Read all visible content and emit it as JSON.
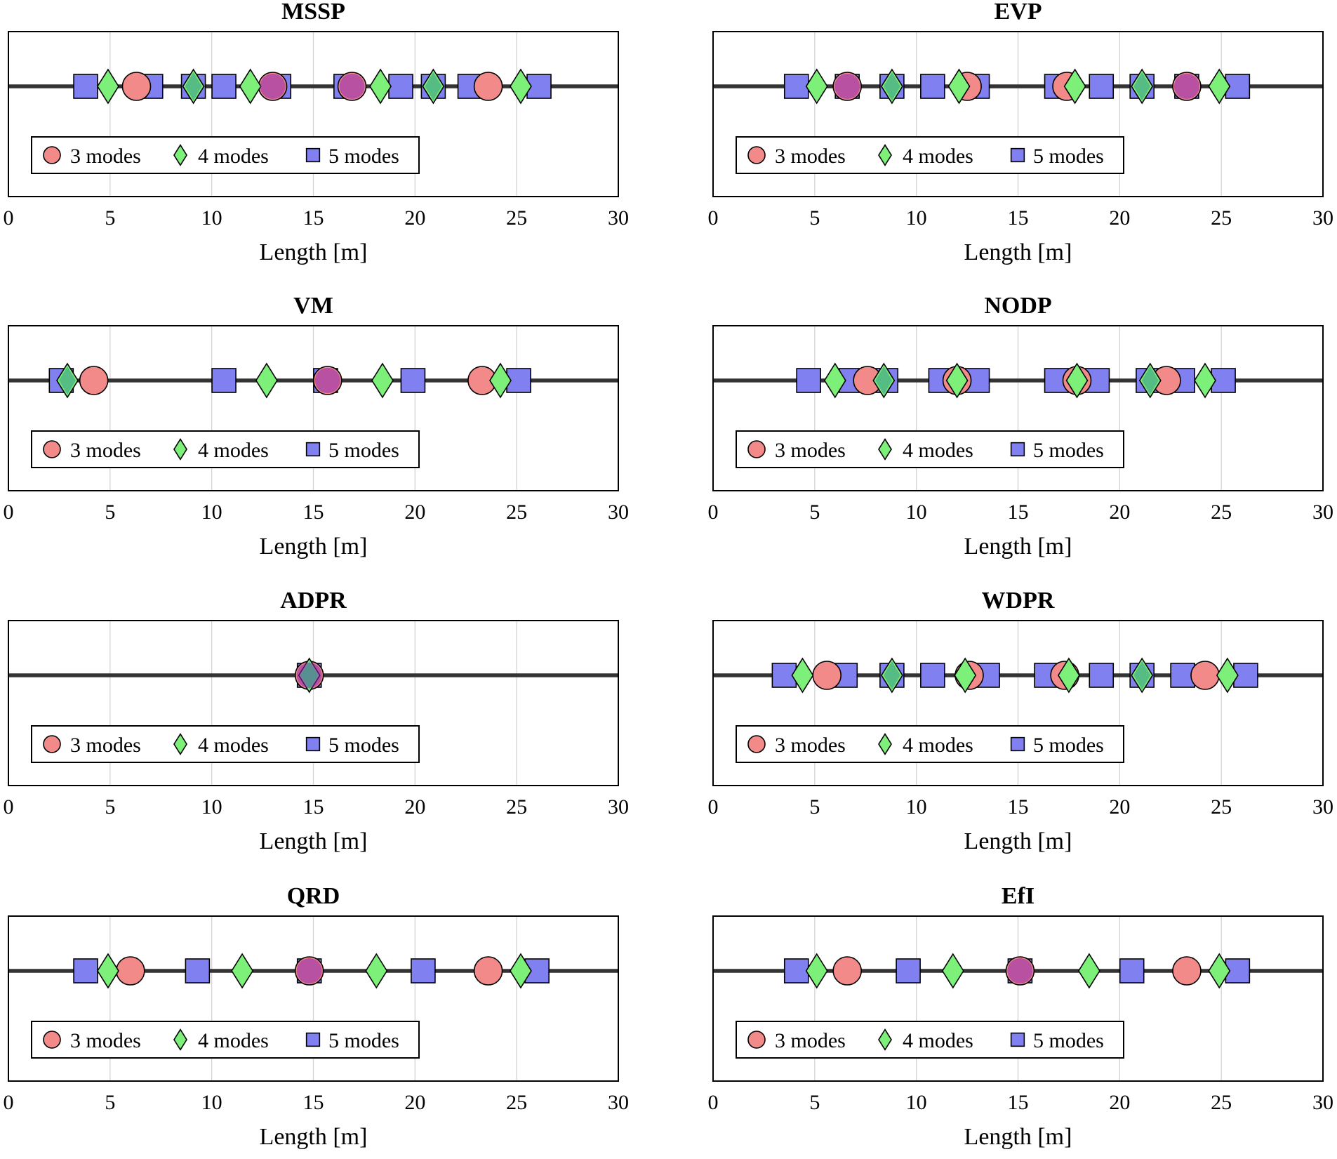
{
  "colors": {
    "mode3": "#f28a8a",
    "mode4": "#7df07a",
    "mode5": "#8080f0",
    "mode3_overlap": "#8a22b8",
    "mode4_overlap": "#3a9a8a",
    "baseline": "#333333",
    "grid": "#d4d4d4",
    "axis": "#000000"
  },
  "legend_labels": [
    "3 modes",
    "4 modes",
    "5 modes"
  ],
  "chart_data": [
    {
      "type": "scatter",
      "title": "MSSP",
      "xlabel": "Length [m]",
      "xlim": [
        0,
        30
      ],
      "xticks": [
        "0",
        "5",
        "10",
        "15",
        "20",
        "25",
        "30"
      ],
      "grid": "vertical",
      "legend_position": "bottom-left",
      "series": [
        {
          "name": "3 modes",
          "marker": "circle",
          "values": [
            6.3,
            13.0,
            16.9,
            23.6
          ]
        },
        {
          "name": "4 modes",
          "marker": "diamond",
          "values": [
            4.9,
            9.1,
            11.9,
            18.3,
            20.9,
            25.2
          ]
        },
        {
          "name": "5 modes",
          "marker": "square",
          "values": [
            3.8,
            7.0,
            9.1,
            10.6,
            13.3,
            16.6,
            19.3,
            20.9,
            22.7,
            26.1
          ]
        }
      ]
    },
    {
      "type": "scatter",
      "title": "EVP",
      "xlabel": "Length [m]",
      "xlim": [
        0,
        30
      ],
      "xticks": [
        "0",
        "5",
        "10",
        "15",
        "20",
        "25",
        "30"
      ],
      "grid": "vertical",
      "legend_position": "bottom-left",
      "series": [
        {
          "name": "3 modes",
          "marker": "circle",
          "values": [
            6.6,
            12.5,
            17.4,
            23.3
          ]
        },
        {
          "name": "4 modes",
          "marker": "diamond",
          "values": [
            5.1,
            8.8,
            12.1,
            17.8,
            21.1,
            24.9
          ]
        },
        {
          "name": "5 modes",
          "marker": "square",
          "values": [
            4.1,
            6.6,
            8.8,
            10.8,
            13.0,
            16.9,
            19.1,
            21.1,
            23.3,
            25.8
          ]
        }
      ]
    },
    {
      "type": "scatter",
      "title": "VM",
      "xlabel": "Length [m]",
      "xlim": [
        0,
        30
      ],
      "xticks": [
        "0",
        "5",
        "10",
        "15",
        "20",
        "25",
        "30"
      ],
      "grid": "vertical",
      "legend_position": "bottom-left",
      "series": [
        {
          "name": "3 modes",
          "marker": "circle",
          "values": [
            4.2,
            15.7,
            23.3
          ]
        },
        {
          "name": "4 modes",
          "marker": "diamond",
          "values": [
            2.9,
            12.7,
            18.4,
            24.2
          ]
        },
        {
          "name": "5 modes",
          "marker": "square",
          "values": [
            2.6,
            10.6,
            15.6,
            19.9,
            25.1
          ]
        }
      ]
    },
    {
      "type": "scatter",
      "title": "NODP",
      "xlabel": "Length [m]",
      "xlim": [
        0,
        30
      ],
      "xticks": [
        "0",
        "5",
        "10",
        "15",
        "20",
        "25",
        "30"
      ],
      "grid": "vertical",
      "legend_position": "bottom-left",
      "series": [
        {
          "name": "3 modes",
          "marker": "circle",
          "values": [
            7.6,
            12.0,
            17.9,
            22.3
          ]
        },
        {
          "name": "4 modes",
          "marker": "diamond",
          "values": [
            6.0,
            8.4,
            12.0,
            17.9,
            21.5,
            24.2
          ]
        },
        {
          "name": "5 modes",
          "marker": "square",
          "values": [
            4.7,
            6.8,
            8.5,
            11.2,
            13.0,
            16.9,
            18.9,
            21.4,
            23.1,
            25.1
          ]
        }
      ]
    },
    {
      "type": "scatter",
      "title": "ADPR",
      "xlabel": "Length [m]",
      "xlim": [
        0,
        30
      ],
      "xticks": [
        "0",
        "5",
        "10",
        "15",
        "20",
        "25",
        "30"
      ],
      "grid": "vertical",
      "legend_position": "bottom-left",
      "series": [
        {
          "name": "3 modes",
          "marker": "circle",
          "values": [
            14.8
          ]
        },
        {
          "name": "4 modes",
          "marker": "diamond",
          "values": [
            14.8
          ]
        },
        {
          "name": "5 modes",
          "marker": "square",
          "values": [
            14.8
          ]
        }
      ]
    },
    {
      "type": "scatter",
      "title": "WDPR",
      "xlabel": "Length [m]",
      "xlim": [
        0,
        30
      ],
      "xticks": [
        "0",
        "5",
        "10",
        "15",
        "20",
        "25",
        "30"
      ],
      "grid": "vertical",
      "legend_position": "bottom-left",
      "series": [
        {
          "name": "3 modes",
          "marker": "circle",
          "values": [
            5.6,
            12.6,
            17.3,
            24.2
          ]
        },
        {
          "name": "4 modes",
          "marker": "diamond",
          "values": [
            4.4,
            8.8,
            12.4,
            17.5,
            21.1,
            25.3
          ]
        },
        {
          "name": "5 modes",
          "marker": "square",
          "values": [
            3.5,
            6.5,
            8.8,
            10.8,
            13.5,
            16.4,
            19.1,
            21.1,
            23.1,
            26.2
          ]
        }
      ]
    },
    {
      "type": "scatter",
      "title": "QRD",
      "xlabel": "Length [m]",
      "xlim": [
        0,
        30
      ],
      "xticks": [
        "0",
        "5",
        "10",
        "15",
        "20",
        "25",
        "30"
      ],
      "grid": "vertical",
      "legend_position": "bottom-left",
      "series": [
        {
          "name": "3 modes",
          "marker": "circle",
          "values": [
            6.0,
            14.8,
            23.6
          ]
        },
        {
          "name": "4 modes",
          "marker": "diamond",
          "values": [
            4.9,
            11.5,
            18.1,
            25.2
          ]
        },
        {
          "name": "5 modes",
          "marker": "square",
          "values": [
            3.8,
            9.3,
            14.8,
            20.4,
            26.0
          ]
        }
      ]
    },
    {
      "type": "scatter",
      "title": "EfI",
      "xlabel": "Length [m]",
      "xlim": [
        0,
        30
      ],
      "xticks": [
        "0",
        "5",
        "10",
        "15",
        "20",
        "25",
        "30"
      ],
      "grid": "vertical",
      "legend_position": "bottom-left",
      "series": [
        {
          "name": "3 modes",
          "marker": "circle",
          "values": [
            6.6,
            15.1,
            23.3
          ]
        },
        {
          "name": "4 modes",
          "marker": "diamond",
          "values": [
            5.1,
            11.8,
            18.5,
            24.9
          ]
        },
        {
          "name": "5 modes",
          "marker": "square",
          "values": [
            4.1,
            9.6,
            15.1,
            20.6,
            25.8
          ]
        }
      ]
    }
  ]
}
